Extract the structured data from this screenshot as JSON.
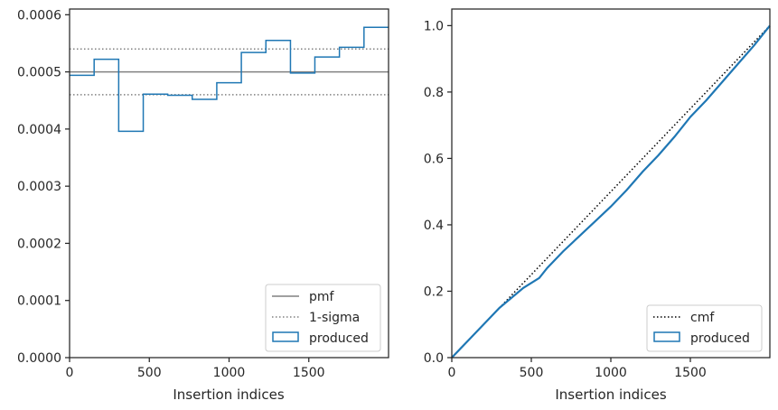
{
  "chart_data": [
    {
      "type": "line",
      "xlabel": "Insertion indices",
      "ylabel": "",
      "xlim": [
        0,
        2000
      ],
      "ylim": [
        0,
        0.00061
      ],
      "xticks": [
        0,
        500,
        1000,
        1500
      ],
      "xtick_labels": [
        "0",
        "500",
        "1000",
        "1500"
      ],
      "yticks": [
        0,
        0.0001,
        0.0002,
        0.0003,
        0.0004,
        0.0005,
        0.0006
      ],
      "ytick_labels": [
        "0.0000",
        "0.0001",
        "0.0002",
        "0.0003",
        "0.0004",
        "0.0005",
        "0.0006"
      ],
      "grid": false,
      "legend": "lower-right",
      "pmf": 0.0005,
      "sigma_band": [
        0.00046,
        0.00054
      ],
      "histogram": {
        "bin_edges": [
          0,
          154,
          308,
          462,
          615,
          769,
          923,
          1077,
          1231,
          1385,
          1538,
          1692,
          1846,
          2000
        ],
        "values": [
          0.000494,
          0.000522,
          0.000396,
          0.000461,
          0.000459,
          0.000452,
          0.000481,
          0.000534,
          0.000555,
          0.000498,
          0.000526,
          0.000543,
          0.000578
        ]
      },
      "series": [
        {
          "name": "pmf",
          "color": "#808080",
          "style": "solid"
        },
        {
          "name": "1-sigma",
          "color": "#808080",
          "style": "dotted"
        },
        {
          "name": "produced",
          "color": "#1f77b4",
          "style": "step"
        }
      ]
    },
    {
      "type": "line",
      "xlabel": "Insertion indices",
      "ylabel": "",
      "xlim": [
        0,
        2000
      ],
      "ylim": [
        0,
        1.05
      ],
      "xticks": [
        0,
        500,
        1000,
        1500
      ],
      "xtick_labels": [
        "0",
        "500",
        "1000",
        "1500"
      ],
      "yticks": [
        0,
        0.2,
        0.4,
        0.6,
        0.8,
        1.0
      ],
      "ytick_labels": [
        "0.0",
        "0.2",
        "0.4",
        "0.6",
        "0.8",
        "1.0"
      ],
      "grid": false,
      "legend": "lower-right",
      "series": [
        {
          "name": "cmf",
          "color": "#000000",
          "style": "dotted",
          "x": [
            0,
            2000
          ],
          "y": [
            0,
            1.0
          ]
        },
        {
          "name": "produced",
          "color": "#1f77b4",
          "style": "solid",
          "x": [
            0,
            100,
            200,
            300,
            400,
            450,
            500,
            550,
            600,
            700,
            800,
            900,
            1000,
            1100,
            1200,
            1300,
            1400,
            1500,
            1600,
            1700,
            1800,
            1900,
            2000
          ],
          "y": [
            0,
            0.05,
            0.1,
            0.15,
            0.19,
            0.21,
            0.225,
            0.24,
            0.27,
            0.32,
            0.365,
            0.41,
            0.455,
            0.505,
            0.56,
            0.61,
            0.665,
            0.725,
            0.775,
            0.83,
            0.885,
            0.94,
            1.0
          ]
        }
      ]
    }
  ]
}
